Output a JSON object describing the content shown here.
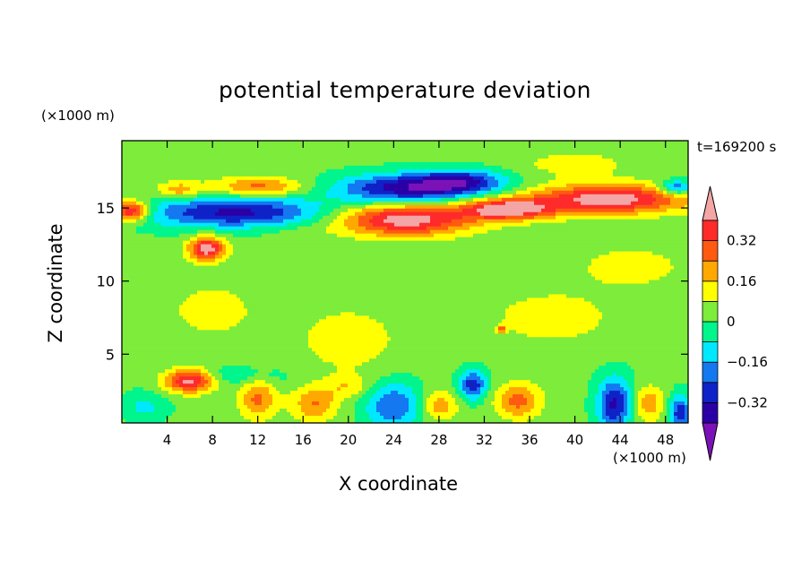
{
  "chart_data": {
    "type": "heatmap",
    "title": "potential temperature deviation",
    "xlabel": "X coordinate",
    "ylabel": "Z coordinate",
    "x_unit": "(×1000 m)",
    "y_unit": "(×1000 m)",
    "time_label": "t=169200 s",
    "xlim": [
      0,
      50
    ],
    "ylim": [
      0.3,
      19.6
    ],
    "xticks": [
      4,
      8,
      12,
      16,
      20,
      24,
      28,
      32,
      36,
      40,
      44,
      48
    ],
    "yticks": [
      5,
      10,
      15
    ],
    "colorbar": {
      "levels": [
        -0.4,
        -0.32,
        -0.24,
        -0.16,
        -0.08,
        0,
        0.08,
        0.16,
        0.24,
        0.32,
        0.4
      ],
      "tick_labels": [
        "0.32",
        "0.16",
        "0",
        "−0.16",
        "−0.32"
      ],
      "tick_values": [
        0.32,
        0.16,
        0,
        -0.16,
        -0.32
      ],
      "colors": [
        "#7b12b8",
        "#2a00a6",
        "#0f22c8",
        "#1478f0",
        "#00e8ff",
        "#00f58c",
        "#7dec3b",
        "#ffff00",
        "#ffa800",
        "#ff5a10",
        "#ff2a2a",
        "#f4a5a5"
      ]
    },
    "features": [
      {
        "x": 25,
        "z": 14.2,
        "rx": 6,
        "rz": 1.1,
        "value": 0.44
      },
      {
        "x": 34,
        "z": 14.9,
        "rx": 4,
        "rz": 0.7,
        "value": 0.44
      },
      {
        "x": 43,
        "z": 15.6,
        "rx": 7,
        "rz": 1.0,
        "value": 0.44
      },
      {
        "x": 0.8,
        "z": 14.8,
        "rx": 1.6,
        "rz": 0.7,
        "value": 0.44
      },
      {
        "x": 7.5,
        "z": 12.2,
        "rx": 1.6,
        "rz": 0.8,
        "value": 0.44
      },
      {
        "x": 6,
        "z": 3.2,
        "rx": 2.2,
        "rz": 0.8,
        "value": 0.44
      },
      {
        "x": 10,
        "z": 14.7,
        "rx": 8,
        "rz": 1.1,
        "value": -0.36
      },
      {
        "x": 25,
        "z": 16.3,
        "rx": 6,
        "rz": 1.0,
        "value": -0.38
      },
      {
        "x": 30,
        "z": 16.8,
        "rx": 4,
        "rz": 0.8,
        "value": -0.3
      },
      {
        "x": 49,
        "z": 16.4,
        "rx": 1.5,
        "rz": 0.5,
        "value": -0.3
      },
      {
        "x": 12,
        "z": 16.4,
        "rx": 4,
        "rz": 0.7,
        "value": 0.26
      },
      {
        "x": 5,
        "z": 16.2,
        "rx": 2,
        "rz": 0.6,
        "value": 0.2
      },
      {
        "x": 24,
        "z": 1.5,
        "rx": 2.5,
        "rz": 1.6,
        "value": -0.26
      },
      {
        "x": 43.5,
        "z": 1.6,
        "rx": 1.5,
        "rz": 1.8,
        "value": -0.36
      },
      {
        "x": 49.3,
        "z": 1.0,
        "rx": 1,
        "rz": 1.2,
        "value": -0.32
      },
      {
        "x": 31,
        "z": 2.9,
        "rx": 1.2,
        "rz": 1.0,
        "value": -0.32
      },
      {
        "x": 12,
        "z": 2.0,
        "rx": 1.6,
        "rz": 1.4,
        "value": 0.24
      },
      {
        "x": 17,
        "z": 1.6,
        "rx": 2,
        "rz": 1.2,
        "value": 0.22
      },
      {
        "x": 28,
        "z": 1.5,
        "rx": 1.6,
        "rz": 1.0,
        "value": 0.2
      },
      {
        "x": 35,
        "z": 1.8,
        "rx": 2,
        "rz": 1.2,
        "value": 0.25
      },
      {
        "x": 46.5,
        "z": 1.6,
        "rx": 1.4,
        "rz": 1.2,
        "value": 0.2
      },
      {
        "x": 2,
        "z": 1.4,
        "rx": 2,
        "rz": 1.0,
        "value": -0.12
      },
      {
        "x": 20,
        "z": 2.8,
        "rx": 2,
        "rz": 0.8,
        "value": 0.12
      },
      {
        "x": 33.5,
        "z": 6.7,
        "rx": 0.3,
        "rz": 0.25,
        "value": 0.3
      },
      {
        "x": 14,
        "z": 13.5,
        "rx": 6,
        "rz": 0.5,
        "value": 0.04
      },
      {
        "x": 8,
        "z": 18.5,
        "rx": 6,
        "rz": 0.8,
        "value": 0.04
      },
      {
        "x": 40,
        "z": 18,
        "rx": 5,
        "rz": 0.9,
        "value": 0.1
      },
      {
        "x": 20,
        "z": 6,
        "rx": 5,
        "rz": 2.5,
        "value": 0.1
      },
      {
        "x": 38,
        "z": 7.5,
        "rx": 6,
        "rz": 2,
        "value": 0.1
      },
      {
        "x": 8,
        "z": 8,
        "rx": 4,
        "rz": 2,
        "value": 0.1
      },
      {
        "x": 45,
        "z": 11,
        "rx": 5,
        "rz": 1.5,
        "value": 0.1
      },
      {
        "x": 10,
        "z": 3.5,
        "rx": 5,
        "rz": 0.7,
        "value": -0.1
      }
    ]
  }
}
